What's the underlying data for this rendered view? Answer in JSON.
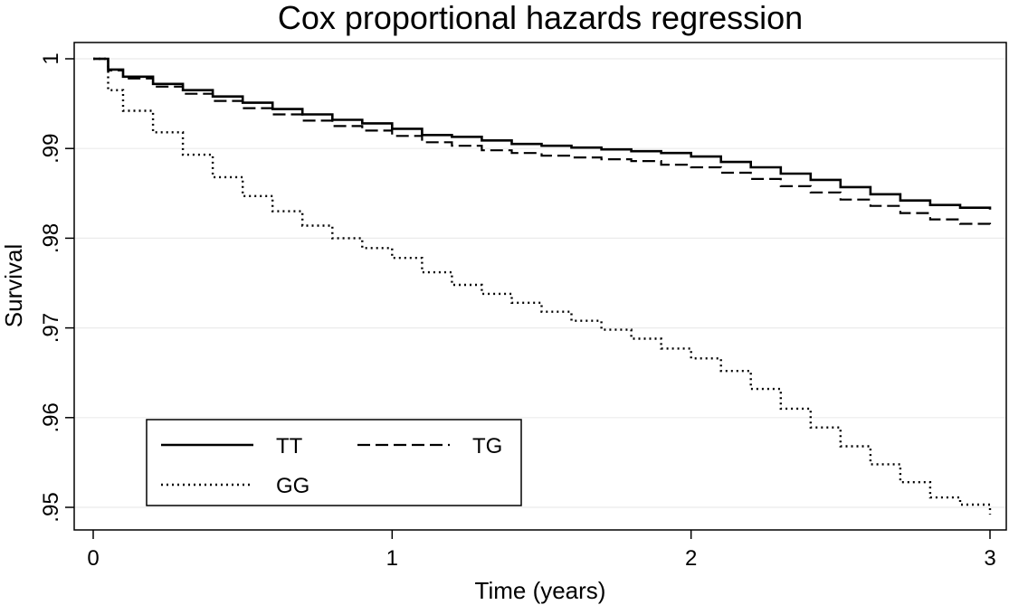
{
  "chart_data": {
    "type": "line",
    "title": "Cox proportional hazards regression",
    "xlabel": "Time (years)",
    "ylabel": "Survival",
    "xlim": [
      0,
      3
    ],
    "ylim": [
      0.948,
      1.003
    ],
    "x_ticks": [
      0,
      1,
      2,
      3
    ],
    "x_tick_labels": [
      "0",
      "1",
      "2",
      "3"
    ],
    "y_ticks": [
      1,
      0.99,
      0.98,
      0.97,
      0.96,
      0.95
    ],
    "y_tick_labels": [
      "1",
      ".99",
      ".98",
      ".97",
      ".96",
      ".95"
    ],
    "grid": true,
    "legend_position": "bottom-left",
    "series": [
      {
        "name": "TT",
        "style": "solid",
        "x": [
          0,
          0.05,
          0.1,
          0.2,
          0.3,
          0.4,
          0.5,
          0.6,
          0.7,
          0.8,
          0.9,
          1.0,
          1.1,
          1.2,
          1.3,
          1.4,
          1.5,
          1.6,
          1.7,
          1.8,
          1.9,
          2.0,
          2.1,
          2.2,
          2.3,
          2.4,
          2.5,
          2.6,
          2.7,
          2.8,
          2.9,
          3.0
        ],
        "values": [
          1.0,
          0.9988,
          0.998,
          0.9972,
          0.9965,
          0.9958,
          0.9951,
          0.9944,
          0.9938,
          0.9932,
          0.9928,
          0.9922,
          0.9915,
          0.9913,
          0.9909,
          0.9905,
          0.9903,
          0.9901,
          0.9899,
          0.9897,
          0.9895,
          0.9891,
          0.9885,
          0.9879,
          0.9872,
          0.9865,
          0.9857,
          0.9849,
          0.9842,
          0.9837,
          0.9834,
          0.9832
        ]
      },
      {
        "name": "TG",
        "style": "dashed",
        "x": [
          0,
          0.05,
          0.1,
          0.2,
          0.3,
          0.4,
          0.5,
          0.6,
          0.7,
          0.8,
          0.9,
          1.0,
          1.1,
          1.2,
          1.3,
          1.4,
          1.5,
          1.6,
          1.7,
          1.8,
          1.9,
          2.0,
          2.1,
          2.2,
          2.3,
          2.4,
          2.5,
          2.6,
          2.7,
          2.8,
          2.9,
          3.0
        ],
        "values": [
          1.0,
          0.9987,
          0.9978,
          0.9969,
          0.9961,
          0.9953,
          0.9945,
          0.9938,
          0.9931,
          0.9925,
          0.992,
          0.9914,
          0.9907,
          0.9903,
          0.9898,
          0.9895,
          0.9892,
          0.989,
          0.9888,
          0.9886,
          0.9882,
          0.9879,
          0.9873,
          0.9866,
          0.9858,
          0.9851,
          0.9843,
          0.9836,
          0.9828,
          0.9821,
          0.9816,
          0.9812
        ]
      },
      {
        "name": "GG",
        "style": "dotted",
        "x": [
          0,
          0.05,
          0.1,
          0.2,
          0.3,
          0.4,
          0.5,
          0.6,
          0.7,
          0.8,
          0.9,
          1.0,
          1.1,
          1.2,
          1.3,
          1.4,
          1.5,
          1.6,
          1.7,
          1.8,
          1.9,
          2.0,
          2.1,
          2.2,
          2.3,
          2.4,
          2.5,
          2.6,
          2.7,
          2.8,
          2.9,
          3.0
        ],
        "values": [
          1.0,
          0.9965,
          0.9942,
          0.9918,
          0.9893,
          0.9868,
          0.9847,
          0.983,
          0.9814,
          0.98,
          0.9789,
          0.9778,
          0.9762,
          0.9748,
          0.9738,
          0.9728,
          0.9718,
          0.9708,
          0.9698,
          0.9688,
          0.9677,
          0.9666,
          0.9652,
          0.9632,
          0.961,
          0.9589,
          0.9568,
          0.9548,
          0.9528,
          0.9511,
          0.9503,
          0.9492
        ]
      }
    ]
  }
}
